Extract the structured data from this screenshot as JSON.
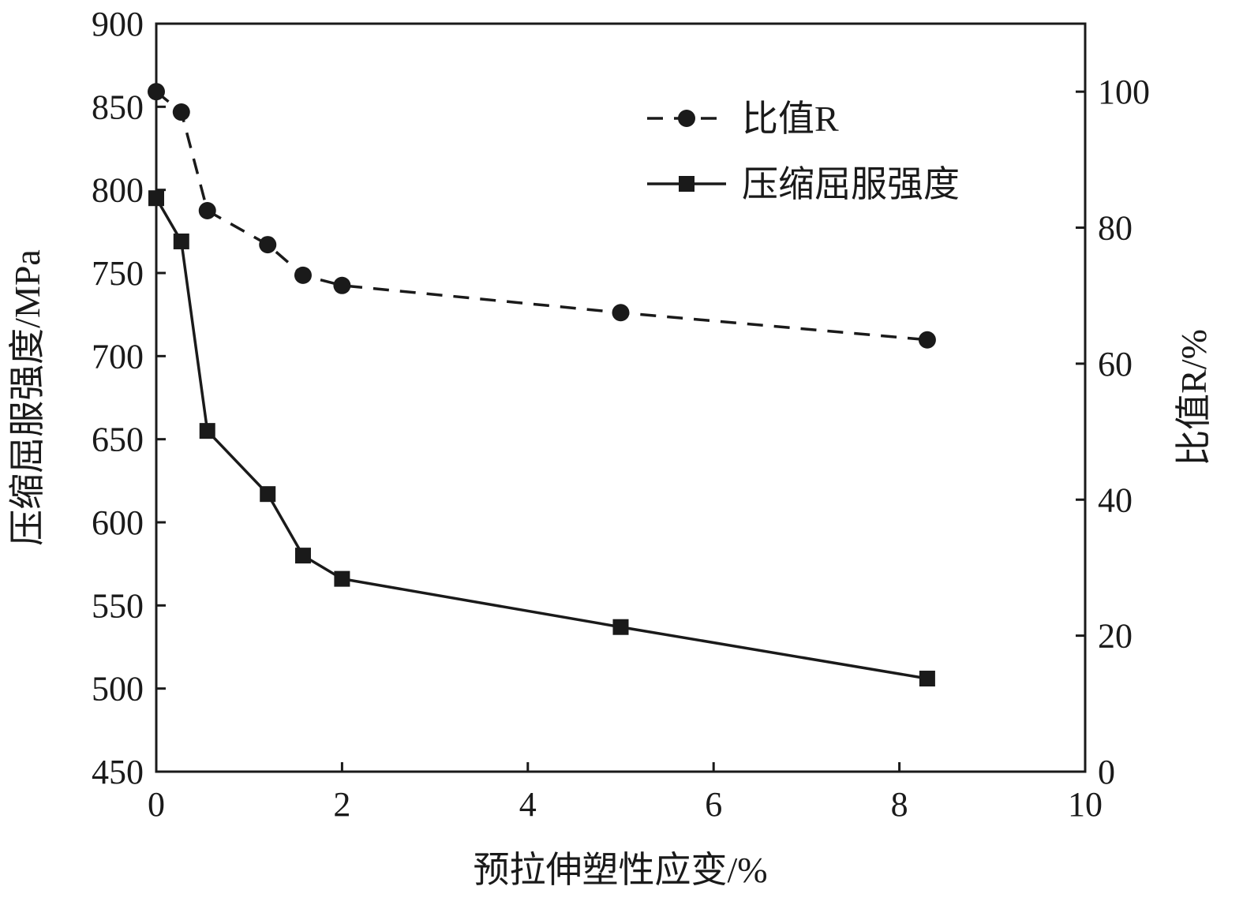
{
  "chart_data": {
    "type": "line",
    "title": "",
    "xlabel": "预拉伸塑性应变/%",
    "ylabel_left": "压缩屈服强度/MPa",
    "ylabel_right": "比值R/%",
    "xlim": [
      0,
      10
    ],
    "ylim_left": [
      450,
      900
    ],
    "ylim_right": [
      0,
      110
    ],
    "x_ticks": [
      "0",
      "2",
      "4",
      "6",
      "8",
      "10"
    ],
    "y_left_ticks": [
      "450",
      "500",
      "550",
      "600",
      "650",
      "700",
      "750",
      "800",
      "850",
      "900"
    ],
    "y_right_ticks": [
      "0",
      "20",
      "40",
      "60",
      "80",
      "100"
    ],
    "grid": false,
    "legend_position": "top-right",
    "series": [
      {
        "name": "比值R",
        "axis": "right",
        "line_style": "dashed",
        "marker": "circle",
        "x": [
          0,
          0.27,
          0.55,
          1.2,
          1.58,
          2.0,
          5.0,
          8.3
        ],
        "y": [
          100,
          97,
          82.5,
          77.5,
          73,
          71.5,
          67.5,
          63.5
        ]
      },
      {
        "name": "压缩屈服强度",
        "axis": "left",
        "line_style": "solid",
        "marker": "square",
        "x": [
          0,
          0.27,
          0.55,
          1.2,
          1.58,
          2.0,
          5.0,
          8.3
        ],
        "y": [
          795,
          769,
          655,
          617,
          580,
          566,
          537,
          506
        ]
      }
    ],
    "colors": {
      "line": "#1a1a1a",
      "background": "#ffffff"
    }
  }
}
